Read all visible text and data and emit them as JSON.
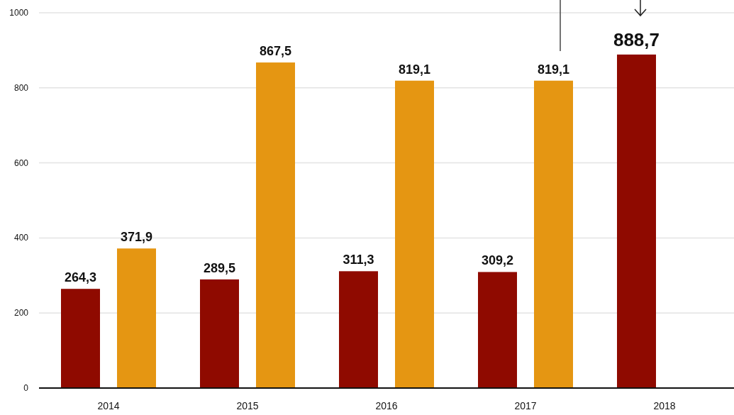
{
  "chart_data": {
    "type": "bar",
    "categories": [
      "2014",
      "2015",
      "2016",
      "2017",
      "2018"
    ],
    "series": [
      {
        "color": "#8f0a00",
        "values": [
          264.3,
          289.5,
          311.3,
          309.2,
          888.7
        ],
        "value_labels": [
          "264,3",
          "289,5",
          "311,3",
          "309,2",
          "888,7"
        ]
      },
      {
        "color": "#e59612",
        "values": [
          371.9,
          867.5,
          819.1,
          819.1,
          null
        ],
        "value_labels": [
          "371,9",
          "867,5",
          "819,1",
          "819,1",
          null
        ]
      }
    ],
    "ylim": [
      0,
      1000
    ],
    "yticks": [
      0,
      200,
      400,
      600,
      800,
      1000
    ],
    "grid": "y"
  }
}
